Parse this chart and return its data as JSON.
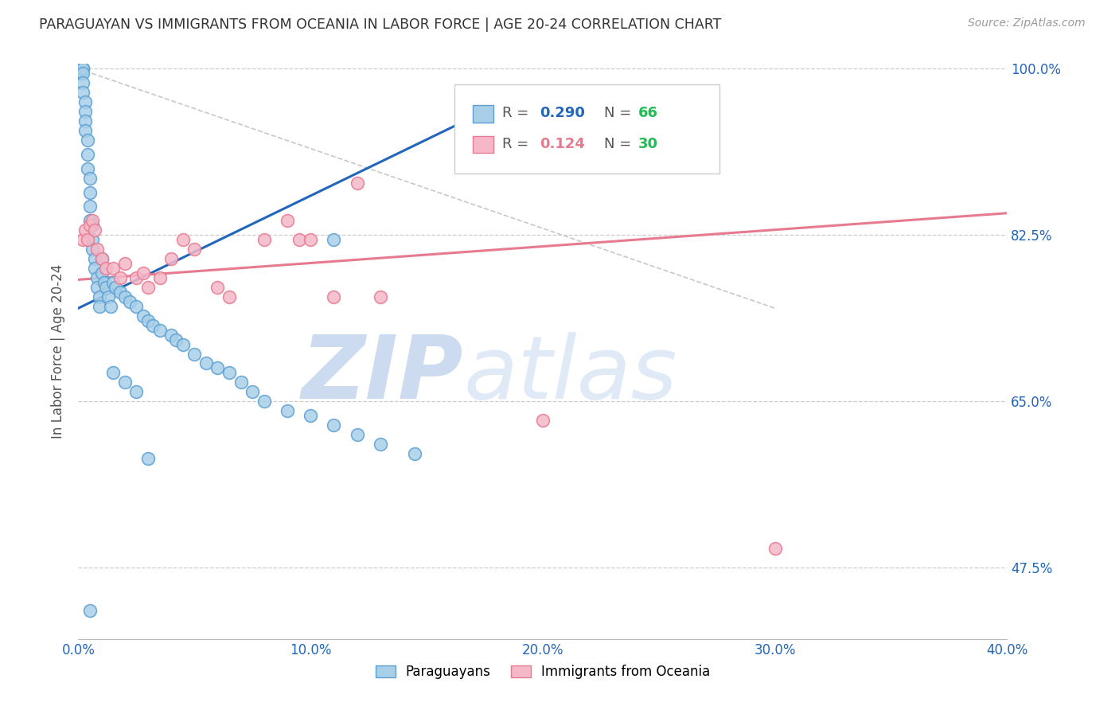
{
  "title": "PARAGUAYAN VS IMMIGRANTS FROM OCEANIA IN LABOR FORCE | AGE 20-24 CORRELATION CHART",
  "source": "Source: ZipAtlas.com",
  "ylabel": "In Labor Force | Age 20-24",
  "xmin": 0.0,
  "xmax": 0.4,
  "ymin": 0.4,
  "ymax": 1.005,
  "yticks": [
    1.0,
    0.825,
    0.65,
    0.475
  ],
  "ytick_labels": [
    "100.0%",
    "82.5%",
    "65.0%",
    "47.5%"
  ],
  "yright_ticks": [
    1.0,
    0.825,
    0.65,
    0.475
  ],
  "xticks": [
    0.0,
    0.1,
    0.2,
    0.3,
    0.4
  ],
  "xtick_labels": [
    "0.0%",
    "10.0%",
    "20.0%",
    "30.0%",
    "40.0%"
  ],
  "blue_R": 0.29,
  "blue_N": 66,
  "pink_R": 0.124,
  "pink_N": 30,
  "blue_color": "#a8cfe8",
  "pink_color": "#f4b8c8",
  "blue_edge_color": "#5b9fd4",
  "pink_edge_color": "#e87a90",
  "blue_line_color": "#2266bb",
  "pink_line_color": "#e87a90",
  "ref_line_color": "#c8c8c8",
  "watermark_zip_color": "#c8d8f0",
  "watermark_atlas_color": "#c8d8f0",
  "legend_R_blue_color": "#2266bb",
  "legend_R_pink_color": "#e87a90",
  "legend_N_color": "#22bb55",
  "background_color": "#ffffff",
  "blue_scatter_x": [
    0.001,
    0.001,
    0.001,
    0.002,
    0.002,
    0.002,
    0.002,
    0.002,
    0.003,
    0.003,
    0.003,
    0.003,
    0.004,
    0.004,
    0.004,
    0.005,
    0.005,
    0.005,
    0.005,
    0.006,
    0.006,
    0.006,
    0.007,
    0.007,
    0.008,
    0.008,
    0.009,
    0.009,
    0.01,
    0.01,
    0.011,
    0.012,
    0.013,
    0.014,
    0.015,
    0.016,
    0.018,
    0.02,
    0.022,
    0.025,
    0.028,
    0.03,
    0.032,
    0.035,
    0.04,
    0.042,
    0.045,
    0.05,
    0.055,
    0.06,
    0.065,
    0.07,
    0.075,
    0.08,
    0.09,
    0.1,
    0.11,
    0.12,
    0.13,
    0.145,
    0.015,
    0.02,
    0.025,
    0.11,
    0.03,
    0.005
  ],
  "blue_scatter_y": [
    1.0,
    1.0,
    0.995,
    1.0,
    1.0,
    0.995,
    0.985,
    0.975,
    0.965,
    0.955,
    0.945,
    0.935,
    0.925,
    0.91,
    0.895,
    0.885,
    0.87,
    0.855,
    0.84,
    0.835,
    0.82,
    0.81,
    0.8,
    0.79,
    0.78,
    0.77,
    0.76,
    0.75,
    0.8,
    0.785,
    0.775,
    0.77,
    0.76,
    0.75,
    0.775,
    0.77,
    0.765,
    0.76,
    0.755,
    0.75,
    0.74,
    0.735,
    0.73,
    0.725,
    0.72,
    0.715,
    0.71,
    0.7,
    0.69,
    0.685,
    0.68,
    0.67,
    0.66,
    0.65,
    0.64,
    0.635,
    0.625,
    0.615,
    0.605,
    0.595,
    0.68,
    0.67,
    0.66,
    0.82,
    0.59,
    0.43
  ],
  "pink_scatter_x": [
    0.002,
    0.003,
    0.004,
    0.005,
    0.006,
    0.007,
    0.008,
    0.01,
    0.012,
    0.015,
    0.018,
    0.02,
    0.025,
    0.028,
    0.03,
    0.035,
    0.04,
    0.045,
    0.05,
    0.06,
    0.065,
    0.08,
    0.09,
    0.095,
    0.1,
    0.11,
    0.12,
    0.13,
    0.2,
    0.3
  ],
  "pink_scatter_y": [
    0.82,
    0.83,
    0.82,
    0.835,
    0.84,
    0.83,
    0.81,
    0.8,
    0.79,
    0.79,
    0.78,
    0.795,
    0.78,
    0.785,
    0.77,
    0.78,
    0.8,
    0.82,
    0.81,
    0.77,
    0.76,
    0.82,
    0.84,
    0.82,
    0.82,
    0.76,
    0.88,
    0.76,
    0.63,
    0.495
  ],
  "blue_line_x": [
    0.0,
    0.175
  ],
  "blue_line_y": [
    0.748,
    0.955
  ],
  "pink_line_x": [
    0.0,
    0.4
  ],
  "pink_line_y": [
    0.778,
    0.848
  ],
  "ref_line_x": [
    0.0,
    0.3
  ],
  "ref_line_y": [
    1.0,
    0.748
  ]
}
